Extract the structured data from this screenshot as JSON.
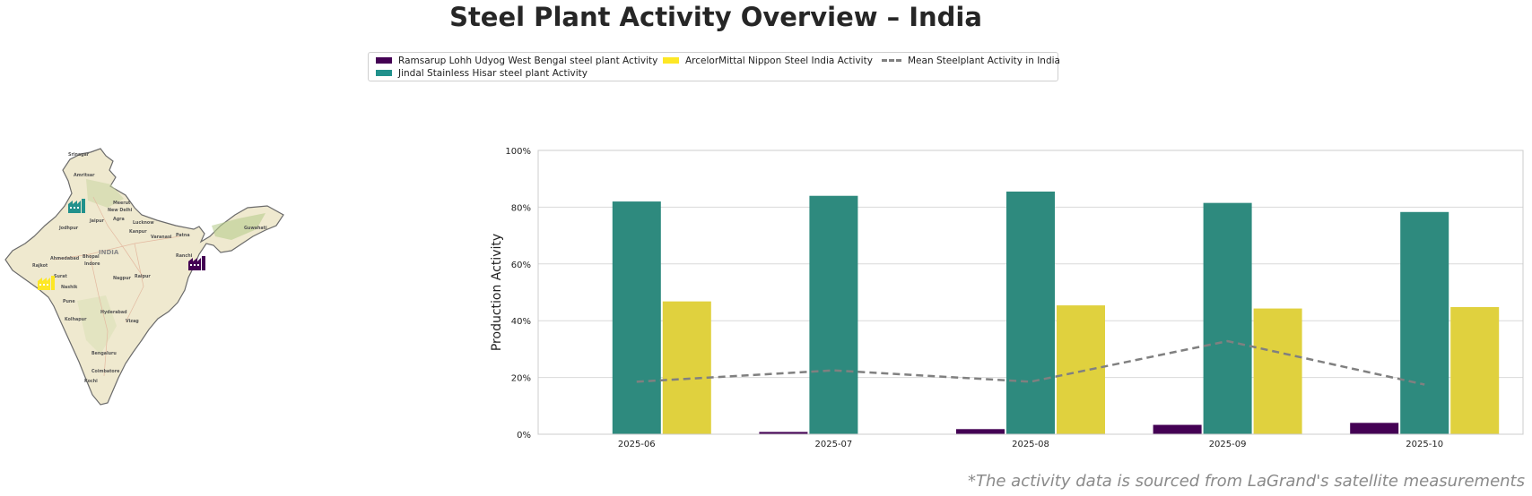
{
  "title": "Steel Plant Activity Overview – India",
  "legend": {
    "items": [
      {
        "label": "Ramsarup Lohh Udyog West Bengal steel plant Activity",
        "color": "#440154"
      },
      {
        "label": "Jindal Stainless Hisar steel plant Activity",
        "color": "#21918c"
      },
      {
        "label": "ArcelorMittal Nippon Steel India Activity",
        "color": "#fde725"
      },
      {
        "label": "Mean Steelplant Activity in India",
        "color": "#808080"
      }
    ]
  },
  "map": {
    "country_label": "INDIA",
    "cities": [
      "Srinagar",
      "Amritsar",
      "Meerut",
      "New Delhi",
      "Jaipur",
      "Agra",
      "Lucknow",
      "Kanpur",
      "Jodhpur",
      "Varanasi",
      "Patna",
      "Guwahati",
      "Ahmedabad",
      "Bhopal",
      "Indore",
      "Ranchi",
      "Rajkot",
      "Surat",
      "Nagpur",
      "Nashik",
      "Raipur",
      "Pune",
      "Hyderabad",
      "Kolhapur",
      "Vizag",
      "Bengaluru",
      "Coimbatore",
      "Kochi"
    ],
    "plant_icons": [
      {
        "name": "Jindal Stainless Hisar",
        "color": "#21918c"
      },
      {
        "name": "Ramsarup Lohh Udyog West Bengal",
        "color": "#440154"
      },
      {
        "name": "ArcelorMittal Nippon Steel India",
        "color": "#fde725"
      }
    ]
  },
  "chart_data": {
    "type": "bar",
    "title": "Steel Plant Activity Overview – India",
    "xlabel": "",
    "ylabel": "Production Activity",
    "ylim": [
      0,
      100
    ],
    "yticks": [
      "0%",
      "20%",
      "40%",
      "60%",
      "80%",
      "100%"
    ],
    "ytick_values": [
      0,
      20,
      40,
      60,
      80,
      100
    ],
    "grid": true,
    "legend_position": "top-center",
    "categories": [
      "2025-06",
      "2025-07",
      "2025-08",
      "2025-09",
      "2025-10"
    ],
    "series": [
      {
        "name": "Ramsarup Lohh Udyog West Bengal steel plant Activity",
        "color": "#440154",
        "values": [
          0,
          0.8,
          1.8,
          3.3,
          4.0
        ]
      },
      {
        "name": "Jindal Stainless Hisar steel plant Activity",
        "color": "#2e8a7e",
        "values": [
          82,
          84,
          85.5,
          81.5,
          78.3
        ]
      },
      {
        "name": "ArcelorMittal Nippon Steel India Activity",
        "color": "#e0d13e",
        "values": [
          46.8,
          0,
          45.4,
          44.3,
          44.8
        ]
      }
    ],
    "line_series": {
      "name": "Mean Steelplant Activity in India",
      "color": "#808080",
      "style": "dashed",
      "values": [
        18.5,
        22.5,
        18.5,
        32.8,
        17.5
      ]
    }
  },
  "footnote": "*The activity data is sourced from LaGrand's satellite measurements"
}
